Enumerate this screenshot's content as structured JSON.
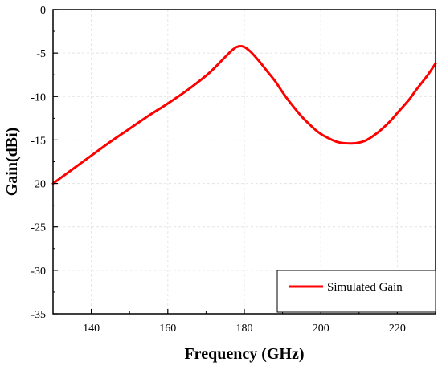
{
  "chart_data": {
    "type": "line",
    "xlabel": "Frequency (GHz)",
    "ylabel": "Gain(dBi)",
    "xlim": [
      130,
      230
    ],
    "ylim": [
      -35,
      0
    ],
    "x_ticks": [
      140,
      160,
      180,
      200,
      220
    ],
    "y_ticks": [
      0,
      -5,
      -10,
      -15,
      -20,
      -25,
      -30,
      -35
    ],
    "grid": true,
    "legend_position": "bottom-right",
    "series": [
      {
        "name": "Simulated Gain",
        "color": "#ff0000",
        "x": [
          130,
          135,
          140,
          145,
          150,
          155,
          160,
          165,
          170,
          172,
          174,
          176,
          177,
          178,
          179,
          180,
          181,
          182,
          184,
          186,
          188,
          190,
          192,
          195,
          198,
          200,
          203,
          205,
          208,
          210,
          212,
          215,
          218,
          220,
          223,
          225,
          228,
          230
        ],
        "y": [
          -20.0,
          -18.4,
          -16.8,
          -15.2,
          -13.7,
          -12.2,
          -10.8,
          -9.3,
          -7.6,
          -6.8,
          -5.9,
          -5.0,
          -4.6,
          -4.3,
          -4.2,
          -4.3,
          -4.6,
          -5.0,
          -6.0,
          -7.1,
          -8.2,
          -9.5,
          -10.7,
          -12.3,
          -13.6,
          -14.3,
          -15.0,
          -15.3,
          -15.4,
          -15.3,
          -15.0,
          -14.1,
          -12.9,
          -11.9,
          -10.4,
          -9.2,
          -7.5,
          -6.2
        ]
      }
    ]
  }
}
